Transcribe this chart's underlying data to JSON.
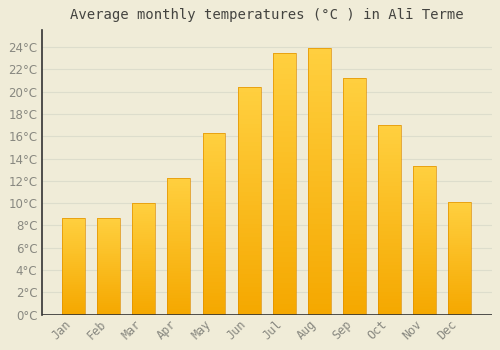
{
  "title": "Average monthly temperatures (°C ) in Alī Terme",
  "months": [
    "Jan",
    "Feb",
    "Mar",
    "Apr",
    "May",
    "Jun",
    "Jul",
    "Aug",
    "Sep",
    "Oct",
    "Nov",
    "Dec"
  ],
  "values": [
    8.7,
    8.7,
    10.0,
    12.3,
    16.3,
    20.4,
    23.5,
    23.9,
    21.2,
    17.0,
    13.3,
    10.1
  ],
  "bar_color_top": "#FFD040",
  "bar_color_bottom": "#F5A800",
  "bar_edge_color": "#E09000",
  "background_color": "#F0ECD8",
  "grid_color": "#DDDDCC",
  "text_color": "#888880",
  "title_color": "#444440",
  "spine_color": "#333333",
  "ylim": [
    0,
    25.5
  ],
  "yticks": [
    0,
    2,
    4,
    6,
    8,
    10,
    12,
    14,
    16,
    18,
    20,
    22,
    24
  ],
  "title_fontsize": 10,
  "tick_fontsize": 8.5
}
